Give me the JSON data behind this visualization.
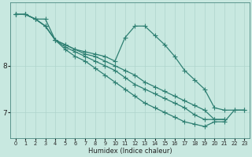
{
  "title": "",
  "xlabel": "Humidex (Indice chaleur)",
  "ylabel": "",
  "bg_color": "#c8e8e0",
  "line_color": "#2e7f72",
  "grid_color": "#afd4cc",
  "yticks": [
    7,
    8
  ],
  "xlim": [
    -0.5,
    23.5
  ],
  "ylim": [
    6.45,
    9.35
  ],
  "series": [
    {
      "x": [
        0,
        1,
        2,
        3,
        4,
        5,
        6,
        7,
        8,
        9,
        10,
        11,
        12,
        13,
        14,
        15,
        16,
        17,
        18,
        19,
        20,
        21,
        22,
        23
      ],
      "y": [
        9.1,
        9.1,
        9.0,
        9.0,
        8.55,
        8.45,
        8.35,
        8.3,
        8.25,
        8.2,
        8.1,
        8.6,
        8.85,
        8.85,
        8.65,
        8.45,
        8.2,
        7.9,
        7.7,
        7.5,
        7.1,
        7.05,
        7.05,
        7.05
      ]
    },
    {
      "x": [
        0,
        1,
        2,
        3,
        4,
        5,
        6,
        7,
        8,
        9,
        10,
        11,
        12,
        13,
        14,
        15,
        16,
        17,
        18,
        19,
        20,
        21
      ],
      "y": [
        9.1,
        9.1,
        9.0,
        8.85,
        8.55,
        8.45,
        8.35,
        8.25,
        8.2,
        8.1,
        8.0,
        7.9,
        7.8,
        7.65,
        7.55,
        7.45,
        7.35,
        7.25,
        7.15,
        7.05,
        6.85,
        6.85
      ]
    },
    {
      "x": [
        0,
        1,
        2,
        3,
        4,
        5,
        6,
        7,
        8,
        9,
        10,
        11,
        12,
        13,
        14,
        15,
        16,
        17,
        18,
        19,
        20,
        21
      ],
      "y": [
        9.1,
        9.1,
        9.0,
        8.85,
        8.55,
        8.4,
        8.3,
        8.2,
        8.1,
        8.0,
        7.9,
        7.75,
        7.6,
        7.5,
        7.4,
        7.3,
        7.2,
        7.1,
        6.95,
        6.85,
        6.85,
        6.85
      ]
    },
    {
      "x": [
        0,
        1,
        2,
        3,
        4,
        5,
        6,
        7,
        8,
        9,
        10,
        11,
        12,
        13,
        14,
        15,
        16,
        17,
        18,
        19,
        20,
        21,
        22,
        23
      ],
      "y": [
        9.1,
        9.1,
        9.0,
        8.85,
        8.55,
        8.35,
        8.2,
        8.1,
        7.95,
        7.8,
        7.65,
        7.5,
        7.35,
        7.2,
        7.1,
        7.0,
        6.9,
        6.8,
        6.75,
        6.7,
        6.8,
        6.8,
        7.05,
        7.05
      ]
    }
  ],
  "xticks": [
    0,
    1,
    2,
    3,
    4,
    5,
    6,
    7,
    8,
    9,
    10,
    11,
    12,
    13,
    14,
    15,
    16,
    17,
    18,
    19,
    20,
    21,
    22,
    23
  ],
  "marker": "+",
  "markersize": 4.0,
  "linewidth": 0.9
}
